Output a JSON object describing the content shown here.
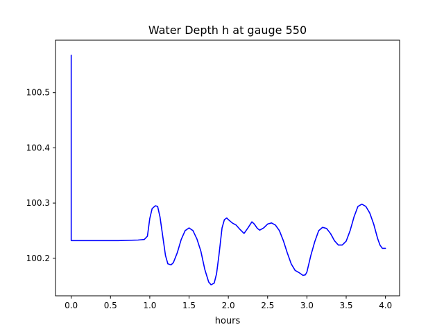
{
  "chart_data": {
    "type": "line",
    "title": "Water Depth h at gauge 550",
    "xlabel": "hours",
    "ylabel": "",
    "xlim": [
      -0.2,
      4.18
    ],
    "ylim": [
      100.132,
      100.595
    ],
    "xticks": [
      0.0,
      0.5,
      1.0,
      1.5,
      2.0,
      2.5,
      3.0,
      3.5,
      4.0
    ],
    "xtick_labels": [
      "0.0",
      "0.5",
      "1.0",
      "1.5",
      "2.0",
      "2.5",
      "3.0",
      "3.5",
      "4.0"
    ],
    "yticks": [
      100.2,
      100.3,
      100.4,
      100.5
    ],
    "ytick_labels": [
      "100.2",
      "100.3",
      "100.4",
      "100.5"
    ],
    "grid": false,
    "legend": "none",
    "series": [
      {
        "color": "#0000ff",
        "x": [
          0.0,
          0.0,
          0.005,
          0.3,
          0.6,
          0.85,
          0.93,
          0.97,
          1.0,
          1.03,
          1.07,
          1.1,
          1.13,
          1.17,
          1.2,
          1.23,
          1.27,
          1.3,
          1.35,
          1.4,
          1.45,
          1.5,
          1.55,
          1.6,
          1.65,
          1.7,
          1.75,
          1.78,
          1.82,
          1.85,
          1.88,
          1.92,
          1.95,
          1.98,
          2.0,
          2.05,
          2.1,
          2.15,
          2.2,
          2.25,
          2.3,
          2.33,
          2.37,
          2.4,
          2.45,
          2.5,
          2.55,
          2.6,
          2.65,
          2.7,
          2.75,
          2.8,
          2.85,
          2.9,
          2.95,
          2.98,
          3.0,
          3.05,
          3.1,
          3.15,
          3.2,
          3.25,
          3.3,
          3.35,
          3.4,
          3.45,
          3.5,
          3.55,
          3.6,
          3.65,
          3.7,
          3.75,
          3.8,
          3.85,
          3.9,
          3.93,
          3.96,
          4.0
        ],
        "y": [
          100.568,
          100.232,
          100.232,
          100.232,
          100.232,
          100.233,
          100.234,
          100.24,
          100.272,
          100.29,
          100.295,
          100.294,
          100.275,
          100.235,
          100.205,
          100.19,
          100.188,
          100.192,
          100.21,
          100.234,
          100.25,
          100.255,
          100.25,
          100.235,
          100.213,
          100.18,
          100.157,
          100.152,
          100.155,
          100.172,
          100.205,
          100.255,
          100.27,
          100.273,
          100.27,
          100.264,
          100.26,
          100.252,
          100.245,
          100.255,
          100.266,
          100.262,
          100.254,
          100.251,
          100.255,
          100.262,
          100.264,
          100.26,
          100.25,
          100.232,
          100.21,
          100.19,
          100.178,
          100.174,
          100.169,
          100.17,
          100.175,
          100.205,
          100.23,
          100.25,
          100.256,
          100.254,
          100.245,
          100.232,
          100.224,
          100.224,
          100.231,
          100.25,
          100.275,
          100.294,
          100.298,
          100.294,
          100.282,
          100.262,
          100.236,
          100.224,
          100.218,
          100.218
        ]
      }
    ]
  }
}
